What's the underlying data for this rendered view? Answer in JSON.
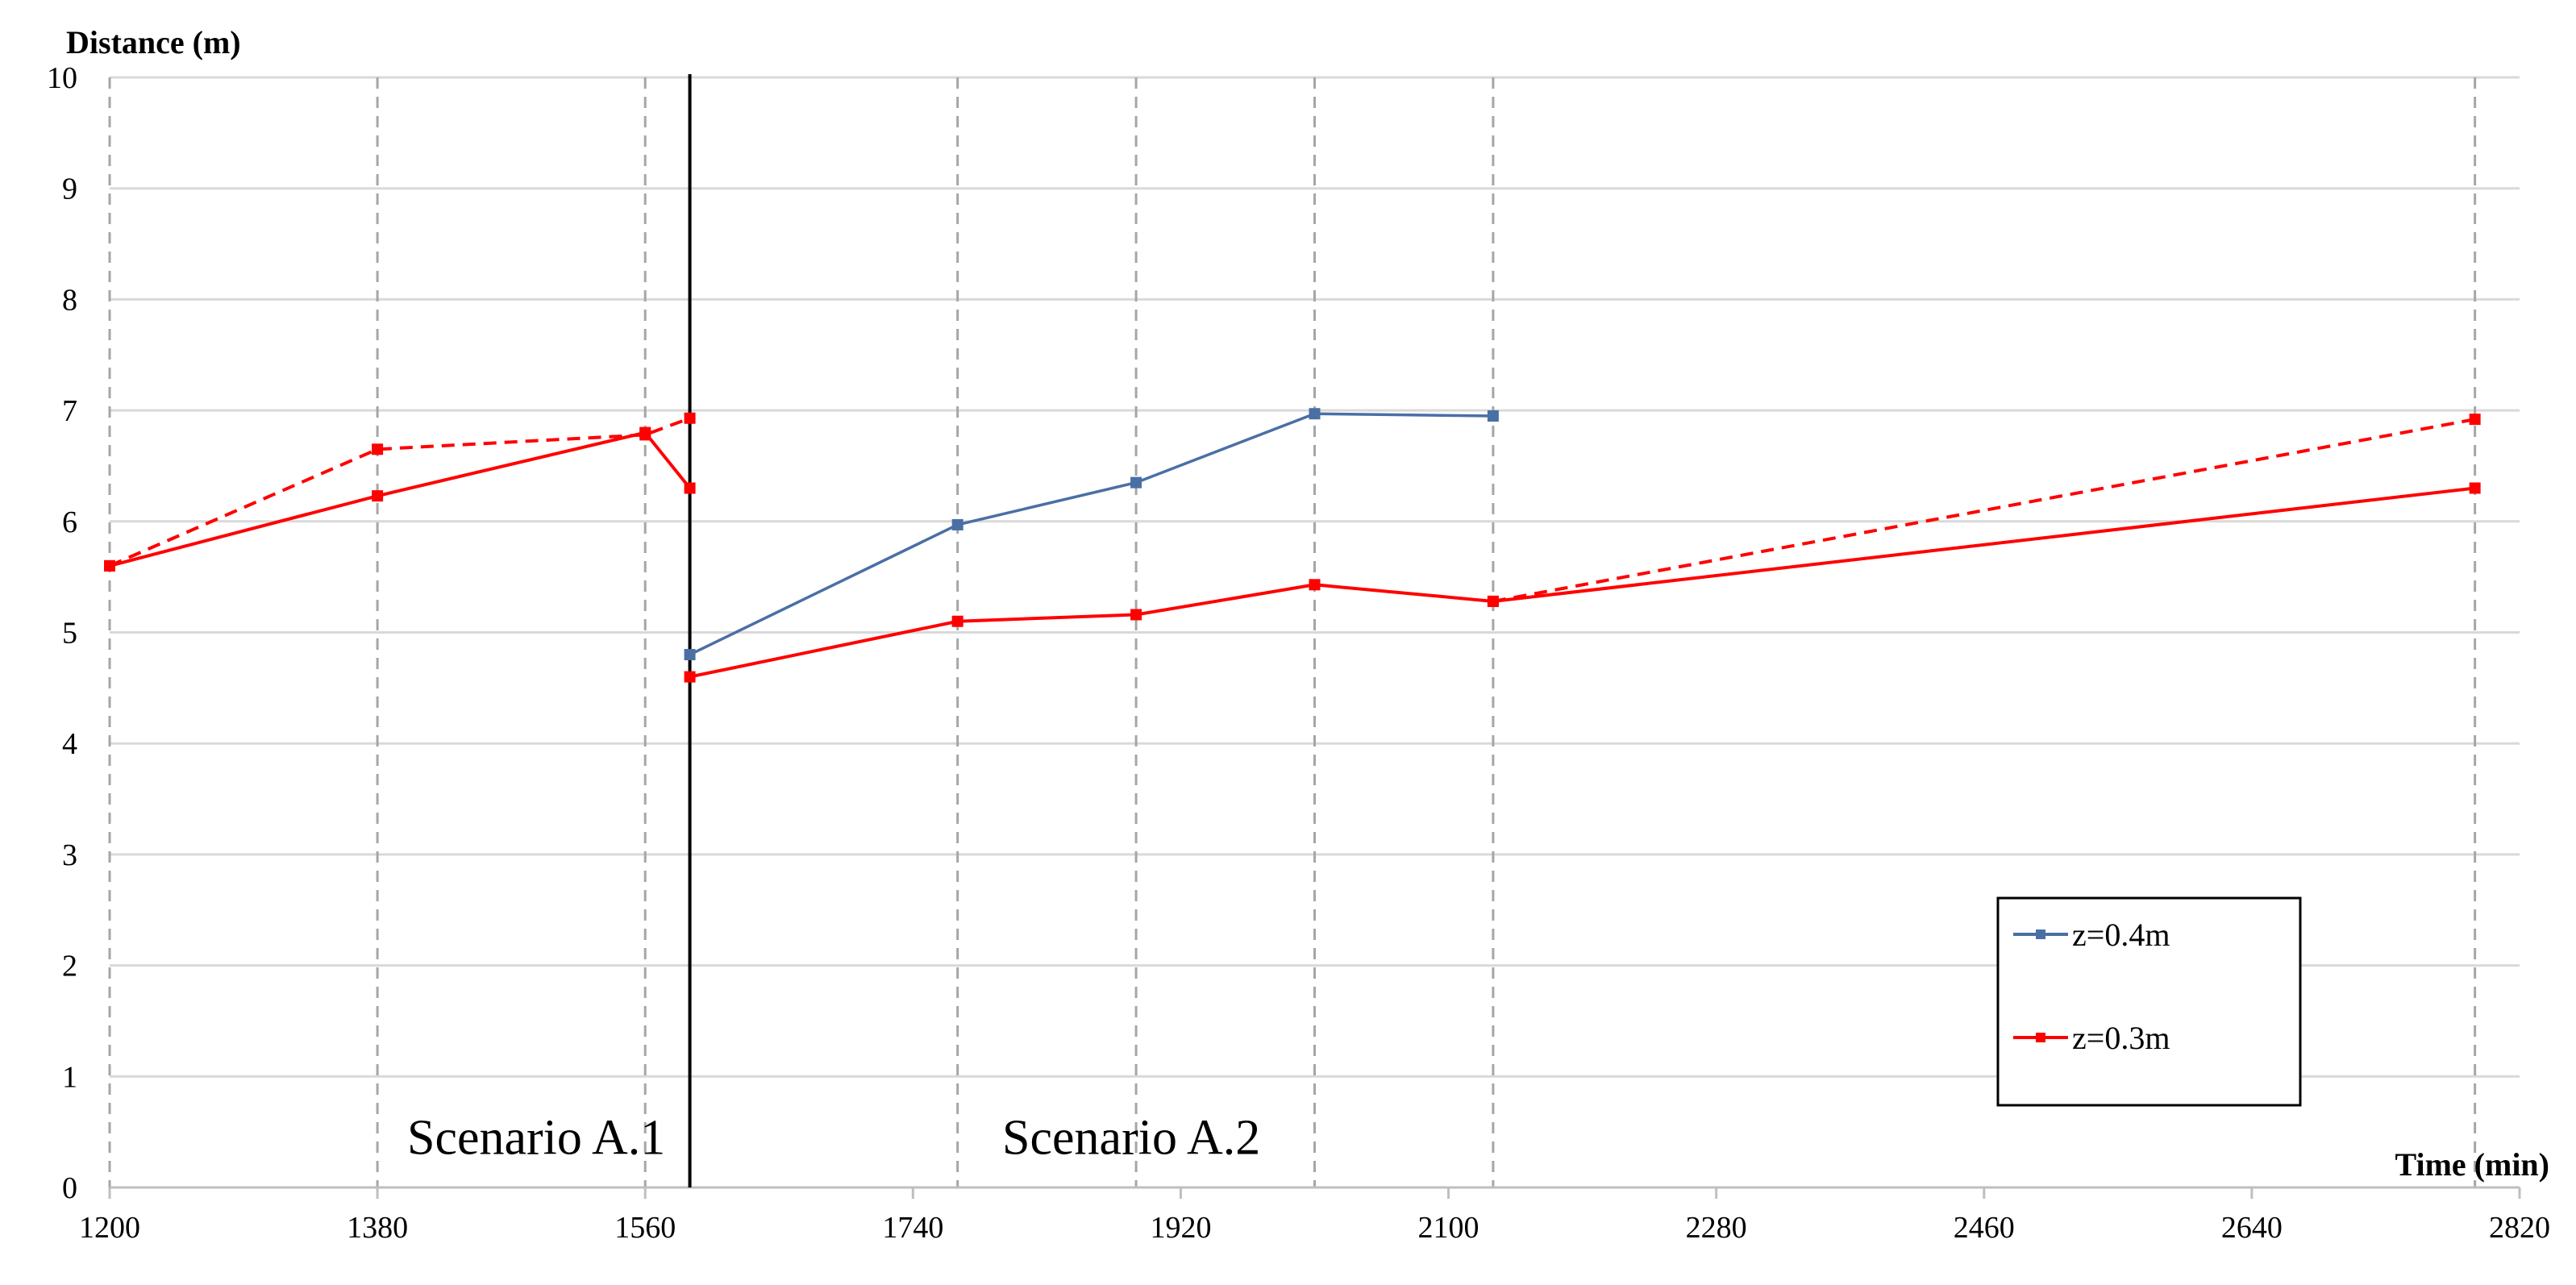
{
  "chart_data": {
    "type": "line",
    "xlabel": "Time (min)",
    "ylabel": "Distance (m)",
    "xlim": [
      1200,
      2820
    ],
    "ylim": [
      0,
      10
    ],
    "xticks": [
      1200,
      1380,
      1560,
      1740,
      1920,
      2100,
      2280,
      2460,
      2640,
      2820
    ],
    "yticks": [
      0,
      1,
      2,
      3,
      4,
      5,
      6,
      7,
      8,
      9,
      10
    ],
    "grid": {
      "horizontal": true,
      "vertical_dashed_at_x": [
        1200,
        1380,
        1560,
        1590,
        1770,
        1890,
        2010,
        2130,
        2790
      ]
    },
    "divider_x": 1590,
    "annotations": [
      {
        "text": "Scenario A.1",
        "x": 1400,
        "y": 0.3
      },
      {
        "text": "Scenario A.2",
        "x": 1800,
        "y": 0.3
      }
    ],
    "legend_position": "bottom-right",
    "series": [
      {
        "name": "z=0.4m",
        "color": "#4a6fa5",
        "style": "solid",
        "points": [
          [
            1590,
            4.8
          ],
          [
            1770,
            5.97
          ],
          [
            1890,
            6.35
          ],
          [
            2010,
            6.97
          ],
          [
            2130,
            6.95
          ]
        ]
      },
      {
        "name": "z=0.3m",
        "color": "#ff0000",
        "style": "solid",
        "points": [
          [
            1200,
            5.6
          ],
          [
            1380,
            6.23
          ],
          [
            1560,
            6.8
          ],
          [
            1590,
            6.3
          ],
          [
            1590,
            4.6
          ],
          [
            1770,
            5.1
          ],
          [
            1890,
            5.16
          ],
          [
            2010,
            5.43
          ],
          [
            2130,
            5.28
          ],
          [
            2790,
            6.3
          ]
        ],
        "segment_breaks_after_index": [
          3
        ]
      },
      {
        "name": "",
        "color": "#ff0000",
        "style": "dashed",
        "points": [
          [
            1200,
            5.6
          ],
          [
            1380,
            6.65
          ],
          [
            1560,
            6.78
          ],
          [
            1590,
            6.93
          ]
        ]
      },
      {
        "name": "",
        "color": "#ff0000",
        "style": "dashed",
        "points": [
          [
            2130,
            5.28
          ],
          [
            2790,
            6.92
          ]
        ]
      }
    ]
  }
}
